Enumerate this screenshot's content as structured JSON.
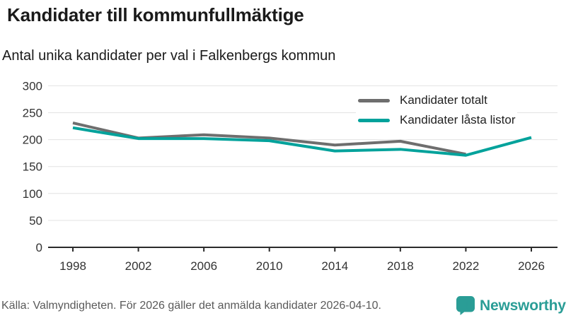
{
  "header": {
    "title": "Kandidater till kommunfullmäktige",
    "subtitle": "Antal unika kandidater per val i Falkenbergs kommun"
  },
  "chart_data": {
    "type": "line",
    "categories": [
      "1998",
      "2002",
      "2006",
      "2010",
      "2014",
      "2018",
      "2022",
      "2026"
    ],
    "series": [
      {
        "name": "Kandidater totalt",
        "color": "#6e6e6e",
        "values": [
          231,
          203,
          209,
          203,
          190,
          197,
          173,
          null
        ]
      },
      {
        "name": "Kandidater låsta listor",
        "color": "#00a29b",
        "values": [
          222,
          202,
          202,
          198,
          179,
          182,
          171,
          204
        ]
      }
    ],
    "title": "Kandidater till kommunfullmäktige",
    "subtitle": "Antal unika kandidater per val i Falkenbergs kommun",
    "xlabel": "",
    "ylabel": "",
    "ylim": [
      0,
      300
    ],
    "ytick_step": 50,
    "grid": true,
    "grid_color": "#e2e2e2",
    "axis_color": "#2b2b2b",
    "tick_label_color": "#333333",
    "legend_position": "top-right"
  },
  "footer": {
    "source": "Källa: Valmyndigheten. För 2026 gäller det anmälda kandidater 2026-04-10."
  },
  "logo": {
    "text": "Newsworthy",
    "color": "#2a9d96",
    "icon": "bar-chart-speech-bubble-icon"
  }
}
